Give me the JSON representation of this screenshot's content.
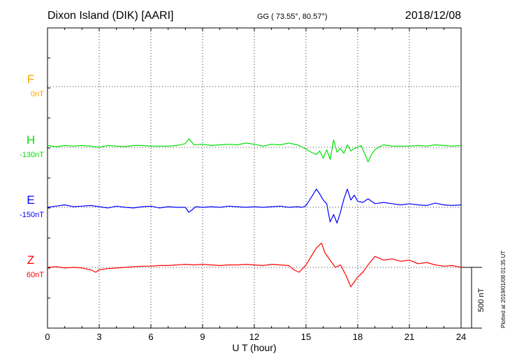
{
  "header": {
    "station": "Dixon Island (DIK)  [AARI]",
    "coords": "GG ( 73.55°,  80.57°)",
    "date": "2018/12/08"
  },
  "footer": {
    "plotted_note": "Plotted at 2019/01/08 01:35 UT",
    "scale_label": "500 nT"
  },
  "colors": {
    "F": "#ffa500",
    "H": "#00e000",
    "E": "#0000ff",
    "Z": "#ff0000",
    "axis": "#000000",
    "grid": "#000000"
  },
  "chart_data": {
    "type": "line",
    "xlabel": "U T (hour)",
    "xlim": [
      0,
      24
    ],
    "x_ticks": [
      "0",
      "3",
      "6",
      "9",
      "12",
      "15",
      "18",
      "21",
      "24"
    ],
    "grid": true,
    "grid_style": "dotted",
    "scale_bar_nT": 500,
    "series": [
      {
        "name": "F",
        "offset_label": "0nT",
        "values": []
      },
      {
        "name": "H",
        "offset_label": "-130nT",
        "x": [
          0,
          0.5,
          1,
          1.5,
          2,
          2.5,
          3,
          3.5,
          4,
          4.5,
          5,
          5.5,
          6,
          6.5,
          7,
          7.5,
          8,
          8.2,
          8.5,
          9,
          9.5,
          10,
          10.5,
          11,
          11.5,
          12,
          12.5,
          13,
          13.5,
          14,
          14.5,
          14.8,
          15,
          15.3,
          15.6,
          15.8,
          16,
          16.2,
          16.4,
          16.6,
          16.8,
          17,
          17.2,
          17.4,
          17.6,
          17.8,
          18,
          18.2,
          18.4,
          18.6,
          18.8,
          19,
          19.2,
          19.5,
          20,
          20.5,
          21,
          21.5,
          22,
          22.5,
          23,
          23.5,
          24
        ],
        "values": [
          15,
          5,
          15,
          10,
          15,
          10,
          0,
          15,
          10,
          5,
          15,
          15,
          10,
          10,
          10,
          15,
          30,
          70,
          20,
          25,
          15,
          20,
          25,
          20,
          35,
          25,
          10,
          25,
          20,
          35,
          20,
          0,
          -15,
          -40,
          -60,
          -30,
          -90,
          -20,
          -100,
          60,
          -40,
          -10,
          -50,
          20,
          -30,
          -10,
          0,
          15,
          -50,
          -120,
          -60,
          -20,
          0,
          20,
          10,
          10,
          10,
          15,
          10,
          20,
          15,
          10,
          15
        ]
      },
      {
        "name": "E",
        "offset_label": "-150nT",
        "x": [
          0,
          0.5,
          1,
          1.5,
          2,
          2.5,
          3,
          3.5,
          4,
          4.5,
          5,
          5.5,
          6,
          6.5,
          7,
          7.5,
          8,
          8.2,
          8.4,
          8.6,
          9,
          9.5,
          10,
          10.5,
          11,
          11.5,
          12,
          12.5,
          13,
          13.5,
          14,
          14.5,
          14.8,
          15,
          15.3,
          15.6,
          15.8,
          16,
          16.2,
          16.4,
          16.6,
          16.8,
          17,
          17.2,
          17.4,
          17.6,
          17.8,
          18,
          18.3,
          18.6,
          19,
          19.5,
          20,
          20.5,
          21,
          21.5,
          22,
          22.5,
          23,
          23.5,
          24
        ],
        "values": [
          0,
          10,
          20,
          5,
          10,
          15,
          5,
          -5,
          10,
          0,
          -5,
          5,
          10,
          -5,
          5,
          0,
          0,
          -40,
          -20,
          5,
          0,
          5,
          0,
          10,
          5,
          0,
          5,
          0,
          5,
          10,
          0,
          5,
          0,
          15,
          80,
          150,
          110,
          60,
          30,
          -120,
          -60,
          -130,
          -40,
          70,
          150,
          60,
          100,
          50,
          40,
          70,
          30,
          40,
          30,
          20,
          30,
          20,
          15,
          35,
          20,
          15,
          20
        ]
      },
      {
        "name": "Z",
        "offset_label": "60nT",
        "x": [
          0,
          0.5,
          1,
          1.5,
          2,
          2.5,
          2.8,
          3,
          3.5,
          4,
          4.5,
          5,
          5.5,
          6,
          6.5,
          7,
          7.5,
          8,
          8.5,
          9,
          9.5,
          10,
          10.5,
          11,
          11.5,
          12,
          12.5,
          13,
          13.5,
          14,
          14.3,
          14.6,
          15,
          15.3,
          15.6,
          15.9,
          16.1,
          16.4,
          16.7,
          17,
          17.3,
          17.6,
          17.8,
          18,
          18.3,
          18.6,
          19,
          19.5,
          20,
          20.5,
          21,
          21.5,
          22,
          22.5,
          23,
          23.5,
          24
        ],
        "values": [
          0,
          5,
          -5,
          0,
          -5,
          -20,
          -40,
          -20,
          -10,
          -5,
          0,
          5,
          10,
          10,
          15,
          15,
          20,
          25,
          20,
          25,
          20,
          15,
          20,
          20,
          25,
          20,
          15,
          25,
          20,
          15,
          -20,
          -40,
          20,
          90,
          160,
          200,
          120,
          60,
          0,
          20,
          -60,
          -160,
          -120,
          -80,
          -40,
          20,
          90,
          60,
          70,
          50,
          60,
          30,
          40,
          20,
          10,
          15,
          0
        ]
      }
    ]
  }
}
